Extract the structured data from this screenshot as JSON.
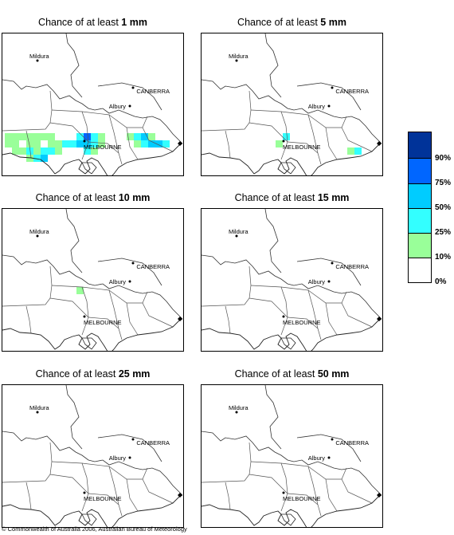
{
  "panels": [
    {
      "title_prefix": "Chance of at least ",
      "title_amount": "1 mm",
      "place_labels": {
        "mildura": "Mildura",
        "canberra": "CANBERRA",
        "albury": "Albury",
        "melbourne": "MELBOURNE"
      },
      "rain_cells": [
        {
          "col": 0,
          "row": 14,
          "color": "#99ff99"
        },
        {
          "col": 1,
          "row": 14,
          "color": "#99ff99"
        },
        {
          "col": 2,
          "row": 14,
          "color": "#99ff99"
        },
        {
          "col": 3,
          "row": 14,
          "color": "#99ff99"
        },
        {
          "col": 4,
          "row": 14,
          "color": "#99ff99"
        },
        {
          "col": 5,
          "row": 14,
          "color": "#99ff99"
        },
        {
          "col": 6,
          "row": 14,
          "color": "#99ff99"
        },
        {
          "col": 0,
          "row": 15,
          "color": "#99ff99"
        },
        {
          "col": 1,
          "row": 15,
          "color": "#99ff99"
        },
        {
          "col": 3,
          "row": 15,
          "color": "#99ff99"
        },
        {
          "col": 4,
          "row": 15,
          "color": "#99ff99"
        },
        {
          "col": 6,
          "row": 15,
          "color": "#99ff99"
        },
        {
          "col": 7,
          "row": 15,
          "color": "#99ff99"
        },
        {
          "col": 8,
          "row": 15,
          "color": "#33ffff"
        },
        {
          "col": 9,
          "row": 15,
          "color": "#33ffff"
        },
        {
          "col": 1,
          "row": 16,
          "color": "#99ff99"
        },
        {
          "col": 2,
          "row": 16,
          "color": "#99ff99"
        },
        {
          "col": 3,
          "row": 16,
          "color": "#33ffff"
        },
        {
          "col": 4,
          "row": 16,
          "color": "#99ff99"
        },
        {
          "col": 5,
          "row": 16,
          "color": "#33ffff"
        },
        {
          "col": 6,
          "row": 16,
          "color": "#33ffff"
        },
        {
          "col": 7,
          "row": 16,
          "color": "#99ff99"
        },
        {
          "col": 3,
          "row": 17,
          "color": "#99ff99"
        },
        {
          "col": 4,
          "row": 17,
          "color": "#33ffff"
        },
        {
          "col": 5,
          "row": 17,
          "color": "#00ccff"
        },
        {
          "col": 10,
          "row": 14,
          "color": "#33ffff"
        },
        {
          "col": 11,
          "row": 14,
          "color": "#0066ff"
        },
        {
          "col": 12,
          "row": 14,
          "color": "#33ffff"
        },
        {
          "col": 13,
          "row": 14,
          "color": "#99ff99"
        },
        {
          "col": 10,
          "row": 15,
          "color": "#00ccff"
        },
        {
          "col": 11,
          "row": 15,
          "color": "#00ccff"
        },
        {
          "col": 12,
          "row": 15,
          "color": "#33ffff"
        },
        {
          "col": 13,
          "row": 15,
          "color": "#99ff99"
        },
        {
          "col": 11,
          "row": 16,
          "color": "#33ffff"
        },
        {
          "col": 12,
          "row": 16,
          "color": "#99ff99"
        },
        {
          "col": 17,
          "row": 14,
          "color": "#99ff99"
        },
        {
          "col": 18,
          "row": 14,
          "color": "#33ffff"
        },
        {
          "col": 19,
          "row": 14,
          "color": "#00ccff"
        },
        {
          "col": 20,
          "row": 14,
          "color": "#99ff99"
        },
        {
          "col": 18,
          "row": 15,
          "color": "#99ff99"
        },
        {
          "col": 19,
          "row": 15,
          "color": "#33ffff"
        },
        {
          "col": 20,
          "row": 15,
          "color": "#00ccff"
        },
        {
          "col": 21,
          "row": 15,
          "color": "#00ccff"
        },
        {
          "col": 22,
          "row": 15,
          "color": "#33ffff"
        }
      ]
    },
    {
      "title_prefix": "Chance of at least ",
      "title_amount": "5 mm",
      "place_labels": {
        "mildura": "Mildura",
        "canberra": "CANBERRA",
        "albury": "Albury",
        "melbourne": "MELBOURNE"
      },
      "rain_cells": [
        {
          "col": 11,
          "row": 14,
          "color": "#33ffff"
        },
        {
          "col": 10,
          "row": 15,
          "color": "#99ff99"
        },
        {
          "col": 20,
          "row": 16,
          "color": "#99ff99"
        },
        {
          "col": 21,
          "row": 16,
          "color": "#33ffff"
        }
      ]
    },
    {
      "title_prefix": "Chance of at least ",
      "title_amount": "10 mm",
      "place_labels": {
        "mildura": "Mildura",
        "canberra": "CANBERRA",
        "albury": "Albury",
        "melbourne": "MELBOURNE"
      },
      "rain_cells": [
        {
          "col": 10,
          "row": 11,
          "color": "#99ff99"
        }
      ]
    },
    {
      "title_prefix": "Chance of at least ",
      "title_amount": "15 mm",
      "place_labels": {
        "mildura": "Mildura",
        "canberra": "CANBERRA",
        "albury": "Albury",
        "melbourne": "MELBOURNE"
      },
      "rain_cells": []
    },
    {
      "title_prefix": "Chance of at least ",
      "title_amount": "25 mm",
      "place_labels": {
        "mildura": "Mildura",
        "canberra": "CANBERRA",
        "albury": "Albury",
        "melbourne": "MELBOURNE"
      },
      "rain_cells": []
    },
    {
      "title_prefix": "Chance of at least ",
      "title_amount": "50 mm",
      "place_labels": {
        "mildura": "Mildura",
        "canberra": "CANBERRA",
        "albury": "Albury",
        "melbourne": "MELBOURNE"
      },
      "rain_cells": []
    }
  ],
  "legend": {
    "swatch_colors": [
      "#003399",
      "#0066ff",
      "#00ccff",
      "#33ffff",
      "#99ff99",
      "#ffffff"
    ],
    "labels": [
      "90%",
      "75%",
      "50%",
      "25%",
      "10%",
      "0%"
    ]
  },
  "copyright": "© Commonwealth of Australia 2006, Australian Bureau of Meteorology"
}
